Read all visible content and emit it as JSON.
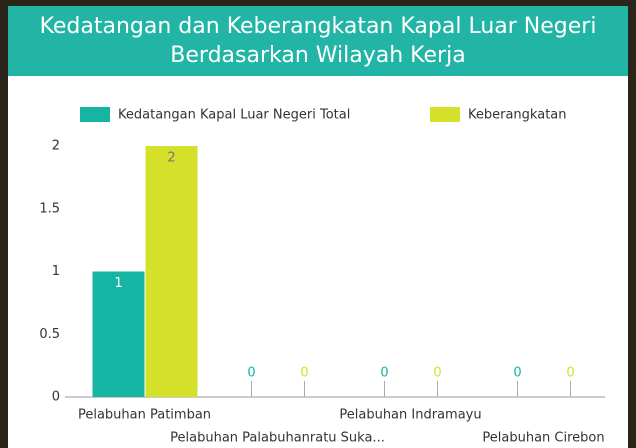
{
  "chart_data": {
    "type": "bar",
    "title": "Kedatangan dan Keberangkatan Kapal Luar Negeri Berdasarkan Wilayah Kerja",
    "categories": [
      "Pelabuhan Patimban",
      "Pelabuhan Palabuhanratu Suka...",
      "Pelabuhan Indramayu",
      "Pelabuhan Cirebon"
    ],
    "series": [
      {
        "name": "Kedatangan Kapal Luar Negeri Total",
        "color": "#16b4a2",
        "values": [
          1,
          0,
          0,
          0
        ]
      },
      {
        "name": "Keberangkatan",
        "color": "#d5e02a",
        "values": [
          2,
          0,
          0,
          0
        ]
      }
    ],
    "ylim": [
      0,
      2
    ],
    "yticks": [
      0,
      0.5,
      1,
      1.5,
      2
    ],
    "grid": false,
    "legend": "top"
  }
}
